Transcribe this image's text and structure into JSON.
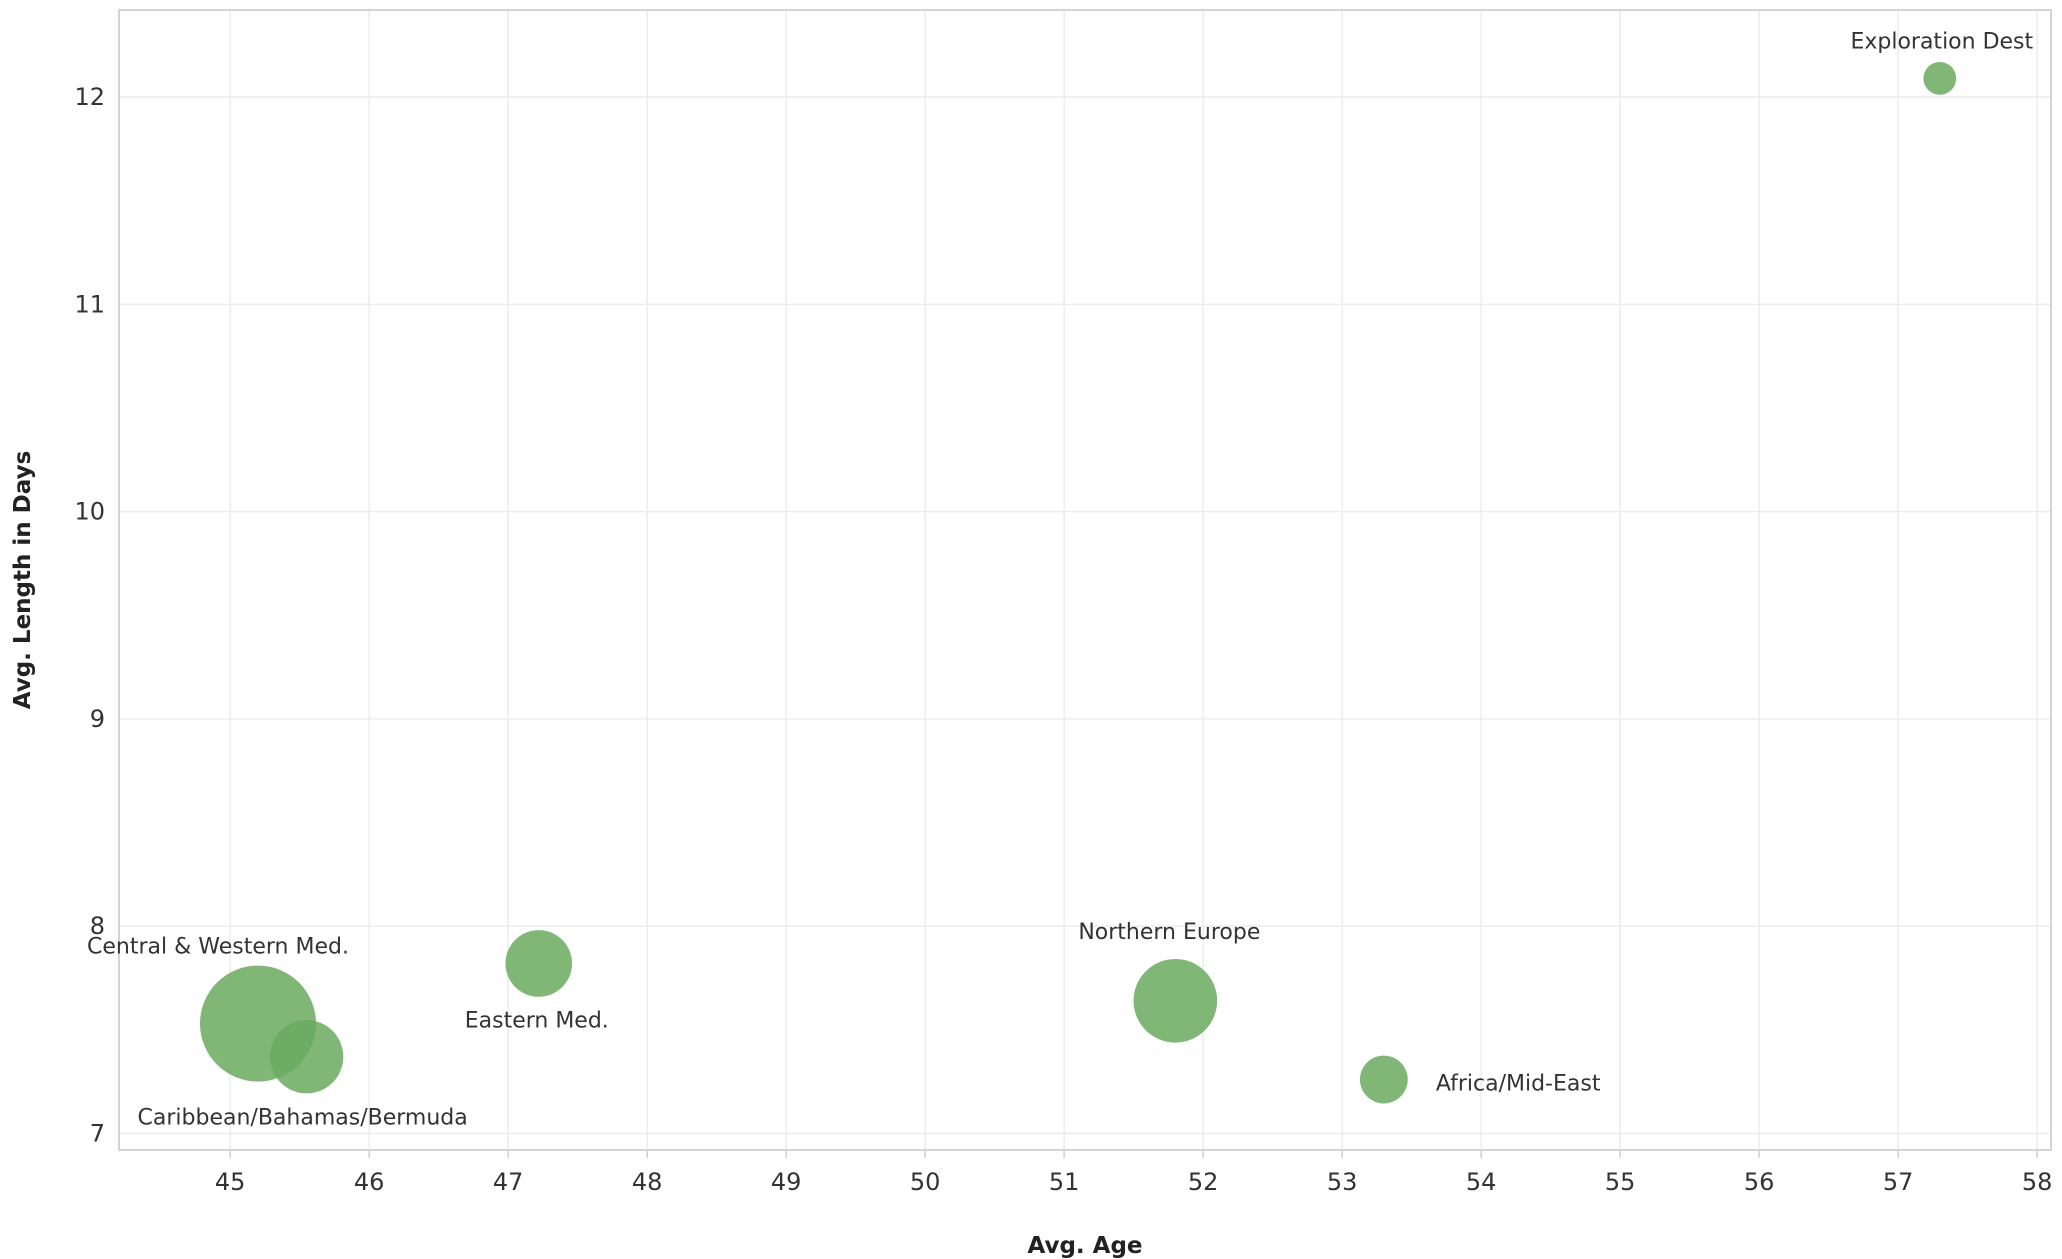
{
  "chart_data": {
    "type": "scatter",
    "title": "",
    "xlabel": "Avg. Age",
    "ylabel": "Avg. Length in Days",
    "xlim": [
      44.2,
      58.1
    ],
    "ylim": [
      6.92,
      12.42
    ],
    "x_ticks": [
      45,
      46,
      47,
      48,
      49,
      50,
      51,
      52,
      53,
      54,
      55,
      56,
      57,
      58
    ],
    "y_ticks": [
      7,
      8,
      9,
      10,
      11,
      12
    ],
    "grid": true,
    "color": "#6aaa5f",
    "points": [
      {
        "label": "Central & Western Med.",
        "x": 45.2,
        "y": 7.53,
        "size": 10
      },
      {
        "label": "Caribbean/Bahamas/Bermuda",
        "x": 45.55,
        "y": 7.37,
        "size": 4
      },
      {
        "label": "Eastern Med.",
        "x": 47.22,
        "y": 7.82,
        "size": 3.3
      },
      {
        "label": "Northern Europe",
        "x": 51.8,
        "y": 7.64,
        "size": 5.2
      },
      {
        "label": "Africa/Mid-East",
        "x": 53.3,
        "y": 7.26,
        "size": 1.7
      },
      {
        "label": "Exploration Dest",
        "x": 57.3,
        "y": 12.09,
        "size": 0.8
      }
    ]
  }
}
